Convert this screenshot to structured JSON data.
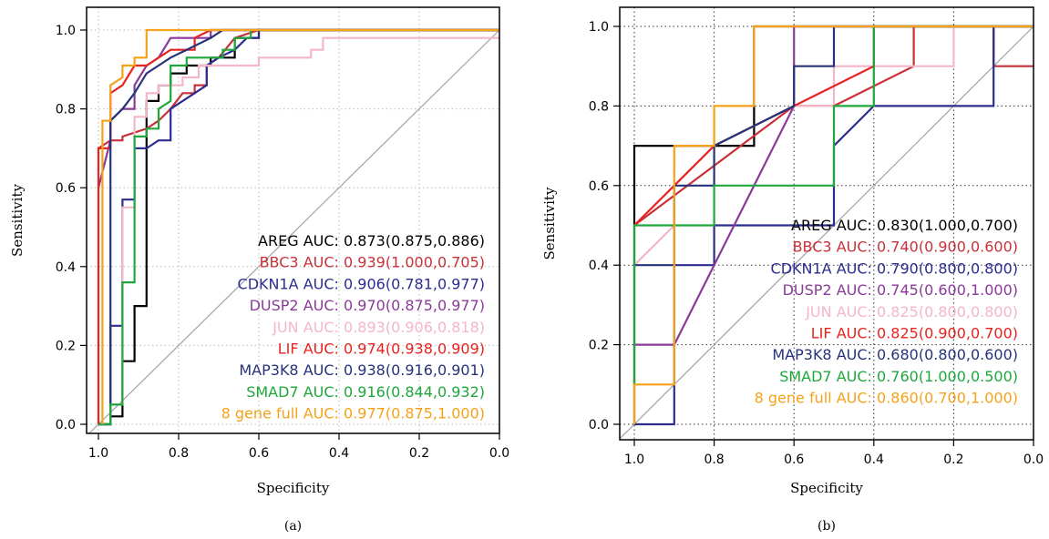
{
  "chart_data": [
    {
      "type": "line",
      "panel_label": "(a)",
      "xlabel": "Specificity",
      "ylabel": "Sensitivity",
      "xlim": [
        1.0,
        0.0
      ],
      "ylim": [
        0.0,
        1.0
      ],
      "x_reversed": true,
      "xticks": [
        "1.0",
        "0.8",
        "0.6",
        "0.4",
        "0.2",
        "0.0"
      ],
      "yticks": [
        "0.0",
        "0.2",
        "0.4",
        "0.6",
        "0.8",
        "1.0"
      ],
      "grid": "dotted",
      "diagonal": true,
      "legend_position": "bottom-right",
      "series": [
        {
          "name": "AREG",
          "auc_label": "AUC: ",
          "auc_value": "0.873(0.875,0.886)",
          "color": "#000000",
          "points": [
            [
              1.0,
              0.0
            ],
            [
              0.97,
              0.0
            ],
            [
              0.97,
              0.02
            ],
            [
              0.94,
              0.02
            ],
            [
              0.94,
              0.16
            ],
            [
              0.91,
              0.16
            ],
            [
              0.91,
              0.3
            ],
            [
              0.88,
              0.3
            ],
            [
              0.88,
              0.82
            ],
            [
              0.85,
              0.82
            ],
            [
              0.85,
              0.86
            ],
            [
              0.82,
              0.86
            ],
            [
              0.82,
              0.89
            ],
            [
              0.78,
              0.89
            ],
            [
              0.78,
              0.91
            ],
            [
              0.72,
              0.91
            ],
            [
              0.72,
              0.93
            ],
            [
              0.66,
              0.93
            ],
            [
              0.66,
              0.98
            ],
            [
              0.6,
              0.98
            ],
            [
              0.6,
              1.0
            ],
            [
              0.0,
              1.0
            ]
          ]
        },
        {
          "name": "BBC3",
          "auc_label": "AUC: ",
          "auc_value": "0.939(1.000,0.705)",
          "color": "#c8313a",
          "points": [
            [
              1.0,
              0.7
            ],
            [
              0.97,
              0.72
            ],
            [
              0.94,
              0.72
            ],
            [
              0.94,
              0.73
            ],
            [
              0.88,
              0.75
            ],
            [
              0.85,
              0.77
            ],
            [
              0.82,
              0.8
            ],
            [
              0.79,
              0.84
            ],
            [
              0.76,
              0.84
            ],
            [
              0.76,
              0.86
            ],
            [
              0.73,
              0.86
            ],
            [
              0.73,
              0.91
            ],
            [
              0.7,
              0.93
            ],
            [
              0.66,
              0.98
            ],
            [
              0.6,
              1.0
            ],
            [
              0.0,
              1.0
            ]
          ]
        },
        {
          "name": "CDKN1A",
          "auc_label": "AUC: ",
          "auc_value": "0.906(0.781,0.977)",
          "color": "#2b2d8f",
          "points": [
            [
              1.0,
              0.0
            ],
            [
              0.97,
              0.0
            ],
            [
              0.97,
              0.25
            ],
            [
              0.94,
              0.25
            ],
            [
              0.94,
              0.57
            ],
            [
              0.91,
              0.57
            ],
            [
              0.91,
              0.7
            ],
            [
              0.88,
              0.7
            ],
            [
              0.85,
              0.72
            ],
            [
              0.82,
              0.72
            ],
            [
              0.82,
              0.8
            ],
            [
              0.79,
              0.82
            ],
            [
              0.76,
              0.84
            ],
            [
              0.73,
              0.86
            ],
            [
              0.73,
              0.91
            ],
            [
              0.7,
              0.93
            ],
            [
              0.66,
              0.95
            ],
            [
              0.63,
              0.98
            ],
            [
              0.6,
              0.98
            ],
            [
              0.6,
              1.0
            ],
            [
              0.0,
              1.0
            ]
          ]
        },
        {
          "name": "DUSP2",
          "auc_label": "AUC: ",
          "auc_value": "0.970(0.875,0.977)",
          "color": "#8b3a99",
          "points": [
            [
              1.0,
              0.6
            ],
            [
              0.97,
              0.72
            ],
            [
              0.97,
              0.77
            ],
            [
              0.94,
              0.8
            ],
            [
              0.91,
              0.8
            ],
            [
              0.91,
              0.86
            ],
            [
              0.88,
              0.91
            ],
            [
              0.85,
              0.93
            ],
            [
              0.82,
              0.98
            ],
            [
              0.72,
              0.98
            ],
            [
              0.72,
              1.0
            ],
            [
              0.0,
              1.0
            ]
          ]
        },
        {
          "name": "JUN",
          "auc_label": "AUC: ",
          "auc_value": "0.893(0.906,0.818)",
          "color": "#f4b6c8",
          "points": [
            [
              0.97,
              0.0
            ],
            [
              0.97,
              0.05
            ],
            [
              0.94,
              0.05
            ],
            [
              0.94,
              0.55
            ],
            [
              0.91,
              0.55
            ],
            [
              0.91,
              0.78
            ],
            [
              0.88,
              0.78
            ],
            [
              0.88,
              0.84
            ],
            [
              0.85,
              0.84
            ],
            [
              0.85,
              0.86
            ],
            [
              0.79,
              0.86
            ],
            [
              0.79,
              0.88
            ],
            [
              0.75,
              0.88
            ],
            [
              0.75,
              0.91
            ],
            [
              0.6,
              0.91
            ],
            [
              0.6,
              0.93
            ],
            [
              0.47,
              0.93
            ],
            [
              0.47,
              0.95
            ],
            [
              0.44,
              0.95
            ],
            [
              0.44,
              0.98
            ],
            [
              0.0,
              0.98
            ]
          ]
        },
        {
          "name": "LIF",
          "auc_label": "AUC: ",
          "auc_value": "0.974(0.938,0.909)",
          "color": "#e8231f",
          "points": [
            [
              1.0,
              0.0
            ],
            [
              1.0,
              0.7
            ],
            [
              0.97,
              0.7
            ],
            [
              0.97,
              0.84
            ],
            [
              0.94,
              0.86
            ],
            [
              0.91,
              0.91
            ],
            [
              0.88,
              0.91
            ],
            [
              0.85,
              0.93
            ],
            [
              0.82,
              0.95
            ],
            [
              0.76,
              0.95
            ],
            [
              0.76,
              0.98
            ],
            [
              0.72,
              1.0
            ],
            [
              0.0,
              1.0
            ]
          ]
        },
        {
          "name": "MAP3K8",
          "auc_label": "AUC: ",
          "auc_value": "0.938(0.916,0.901)",
          "color": "#26337a",
          "points": [
            [
              1.0,
              0.0
            ],
            [
              0.97,
              0.0
            ],
            [
              0.97,
              0.77
            ],
            [
              0.94,
              0.8
            ],
            [
              0.91,
              0.84
            ],
            [
              0.88,
              0.89
            ],
            [
              0.85,
              0.91
            ],
            [
              0.82,
              0.93
            ],
            [
              0.78,
              0.95
            ],
            [
              0.72,
              0.98
            ],
            [
              0.69,
              1.0
            ],
            [
              0.0,
              1.0
            ]
          ]
        },
        {
          "name": "SMAD7",
          "auc_label": "AUC: ",
          "auc_value": "0.916(0.844,0.932)",
          "color": "#1ea83c",
          "points": [
            [
              1.0,
              0.0
            ],
            [
              0.97,
              0.0
            ],
            [
              0.97,
              0.05
            ],
            [
              0.94,
              0.05
            ],
            [
              0.94,
              0.36
            ],
            [
              0.91,
              0.36
            ],
            [
              0.91,
              0.73
            ],
            [
              0.88,
              0.73
            ],
            [
              0.88,
              0.75
            ],
            [
              0.85,
              0.75
            ],
            [
              0.85,
              0.8
            ],
            [
              0.82,
              0.82
            ],
            [
              0.82,
              0.91
            ],
            [
              0.78,
              0.91
            ],
            [
              0.78,
              0.93
            ],
            [
              0.69,
              0.93
            ],
            [
              0.69,
              0.95
            ],
            [
              0.66,
              0.95
            ],
            [
              0.66,
              0.98
            ],
            [
              0.62,
              0.98
            ],
            [
              0.62,
              1.0
            ],
            [
              0.0,
              1.0
            ]
          ]
        },
        {
          "name": "8 gene full",
          "auc_label": "AUC: ",
          "auc_value": "0.977(0.875,1.000)",
          "color": "#f5a21a",
          "points": [
            [
              0.99,
              0.0
            ],
            [
              0.99,
              0.77
            ],
            [
              0.97,
              0.77
            ],
            [
              0.97,
              0.86
            ],
            [
              0.94,
              0.88
            ],
            [
              0.94,
              0.91
            ],
            [
              0.91,
              0.91
            ],
            [
              0.91,
              0.93
            ],
            [
              0.88,
              0.93
            ],
            [
              0.88,
              1.0
            ],
            [
              0.0,
              1.0
            ]
          ]
        }
      ]
    },
    {
      "type": "line",
      "panel_label": "(b)",
      "xlabel": "Specificity",
      "ylabel": "Sensitivity",
      "xlim": [
        1.0,
        0.0
      ],
      "ylim": [
        0.0,
        1.0
      ],
      "x_reversed": true,
      "xticks": [
        "1.0",
        "0.8",
        "0.6",
        "0.4",
        "0.2",
        "0.0"
      ],
      "yticks": [
        "0.0",
        "0.2",
        "0.4",
        "0.6",
        "0.8",
        "1.0"
      ],
      "grid": "dotted",
      "diagonal": true,
      "legend_position": "bottom-right",
      "series": [
        {
          "name": "AREG",
          "auc_label": "AUC: ",
          "auc_value": "0.830(1.000,0.700)",
          "color": "#000000",
          "points": [
            [
              1.0,
              0.0
            ],
            [
              1.0,
              0.7
            ],
            [
              0.7,
              0.7
            ],
            [
              0.7,
              1.0
            ],
            [
              0.0,
              1.0
            ]
          ]
        },
        {
          "name": "BBC3",
          "auc_label": "AUC: ",
          "auc_value": "0.740(0.900,0.600)",
          "color": "#c8313a",
          "points": [
            [
              1.0,
              0.5
            ],
            [
              0.6,
              0.8
            ],
            [
              0.5,
              0.8
            ],
            [
              0.3,
              0.9
            ],
            [
              0.3,
              1.0
            ],
            [
              0.1,
              1.0
            ],
            [
              0.1,
              0.9
            ],
            [
              0.0,
              0.9
            ]
          ]
        },
        {
          "name": "CDKN1A",
          "auc_label": "AUC: ",
          "auc_value": "0.790(0.800,0.800)",
          "color": "#2b2d8f",
          "points": [
            [
              1.0,
              0.0
            ],
            [
              0.9,
              0.0
            ],
            [
              0.9,
              0.1
            ],
            [
              0.9,
              0.4
            ],
            [
              0.8,
              0.4
            ],
            [
              0.8,
              0.5
            ],
            [
              0.5,
              0.5
            ],
            [
              0.5,
              0.7
            ],
            [
              0.4,
              0.8
            ],
            [
              0.1,
              0.8
            ],
            [
              0.1,
              1.0
            ],
            [
              0.0,
              1.0
            ]
          ]
        },
        {
          "name": "DUSP2",
          "auc_label": "AUC: ",
          "auc_value": "0.745(0.600,1.000)",
          "color": "#8b3a99",
          "points": [
            [
              1.0,
              0.2
            ],
            [
              0.9,
              0.2
            ],
            [
              0.6,
              0.8
            ],
            [
              0.6,
              1.0
            ],
            [
              0.0,
              1.0
            ]
          ]
        },
        {
          "name": "JUN",
          "auc_label": "AUC: ",
          "auc_value": "0.825(0.800,0.800)",
          "color": "#f4b6c8",
          "points": [
            [
              1.0,
              0.4
            ],
            [
              0.9,
              0.5
            ],
            [
              0.9,
              0.6
            ],
            [
              0.8,
              0.7
            ],
            [
              0.6,
              0.8
            ],
            [
              0.5,
              0.8
            ],
            [
              0.5,
              0.9
            ],
            [
              0.2,
              0.9
            ],
            [
              0.2,
              1.0
            ],
            [
              0.0,
              1.0
            ]
          ]
        },
        {
          "name": "LIF",
          "auc_label": "AUC: ",
          "auc_value": "0.825(0.900,0.700)",
          "color": "#e8231f",
          "points": [
            [
              1.0,
              0.5
            ],
            [
              0.9,
              0.6
            ],
            [
              0.8,
              0.7
            ],
            [
              0.6,
              0.8
            ],
            [
              0.4,
              0.9
            ],
            [
              0.4,
              1.0
            ],
            [
              0.0,
              1.0
            ]
          ]
        },
        {
          "name": "MAP3K8",
          "auc_label": "AUC: ",
          "auc_value": "0.680(0.800,0.600)",
          "color": "#26337a",
          "points": [
            [
              1.0,
              0.4
            ],
            [
              0.9,
              0.4
            ],
            [
              0.9,
              0.6
            ],
            [
              0.8,
              0.6
            ],
            [
              0.8,
              0.7
            ],
            [
              0.6,
              0.8
            ],
            [
              0.6,
              0.9
            ],
            [
              0.5,
              0.9
            ],
            [
              0.5,
              1.0
            ],
            [
              0.4,
              1.0
            ],
            [
              0.0,
              1.0
            ]
          ]
        },
        {
          "name": "SMAD7",
          "auc_label": "AUC: ",
          "auc_value": "0.760(1.000,0.500)",
          "color": "#1ea83c",
          "points": [
            [
              1.0,
              0.1
            ],
            [
              1.0,
              0.5
            ],
            [
              0.9,
              0.5
            ],
            [
              0.8,
              0.5
            ],
            [
              0.8,
              0.6
            ],
            [
              0.5,
              0.6
            ],
            [
              0.5,
              0.8
            ],
            [
              0.4,
              0.8
            ],
            [
              0.4,
              1.0
            ],
            [
              0.0,
              1.0
            ]
          ]
        },
        {
          "name": "8 gene full",
          "auc_label": "AUC: ",
          "auc_value": "0.860(0.700,1.000)",
          "color": "#f5a21a",
          "points": [
            [
              1.0,
              0.0
            ],
            [
              1.0,
              0.1
            ],
            [
              0.9,
              0.1
            ],
            [
              0.9,
              0.7
            ],
            [
              0.8,
              0.7
            ],
            [
              0.8,
              0.8
            ],
            [
              0.7,
              0.8
            ],
            [
              0.7,
              1.0
            ],
            [
              0.0,
              1.0
            ]
          ]
        }
      ]
    }
  ]
}
